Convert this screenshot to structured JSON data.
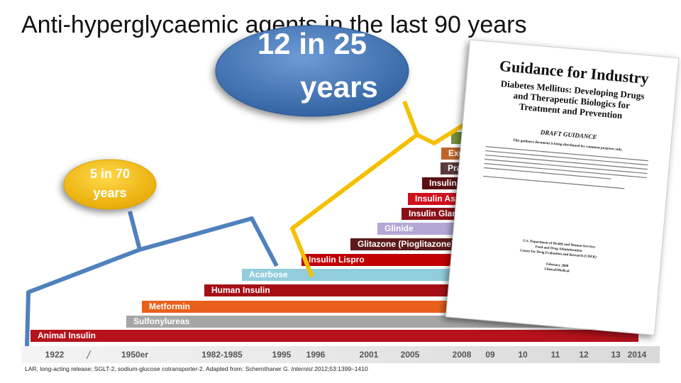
{
  "title": "Anti-hyperglycaemic agents in the last 90 years",
  "bubbles": [
    {
      "line1": "12 in 25",
      "line2": "years"
    },
    {
      "line1": "5 in 70",
      "line2": "years"
    }
  ],
  "bars": [
    {
      "label": "Animal Insulin"
    },
    {
      "label": "Sulfonylureas"
    },
    {
      "label": "Metformin"
    },
    {
      "label": "Human Insulin"
    },
    {
      "label": "Acarbose"
    },
    {
      "label": "Insulin Lispro"
    },
    {
      "label": "Glitazone (Pioglitazone)"
    },
    {
      "label": "Glinide"
    },
    {
      "label": "Insulin Glargine"
    },
    {
      "label": "Insulin Aspart"
    },
    {
      "label": "Insulin Detemir"
    },
    {
      "label": "Pramlintide"
    },
    {
      "label": "Exenatide"
    }
  ],
  "axis": [
    "1922",
    "1950er",
    "1982-1985",
    "1995",
    "1996",
    "2001",
    "2005",
    "2008",
    "09",
    "10",
    "11",
    "12",
    "13",
    "2014"
  ],
  "footnote": {
    "before": "LAR, long-acting release; SGLT-2, sodium-glucose cotransporter-2. Adapted from: Schernthaner G. ",
    "journal": "Internist",
    "after": " 2012;53:1399–1410"
  },
  "document": {
    "title": "Guidance for Industry",
    "subtitle": [
      "Diabetes Mellitus:  Developing Drugs",
      "and Therapeutic Biologics for",
      "Treatment and Prevention"
    ],
    "draft": "DRAFT GUIDANCE",
    "notice": "This guidance document is being distributed for comment purposes only.",
    "agency": [
      "U.S. Department of Health and Human Services",
      "Food and Drug Administration",
      "Center for Drug Evaluation and Research (CDER)"
    ],
    "date": "February 2008",
    "category": "Clinical/Medical"
  }
}
